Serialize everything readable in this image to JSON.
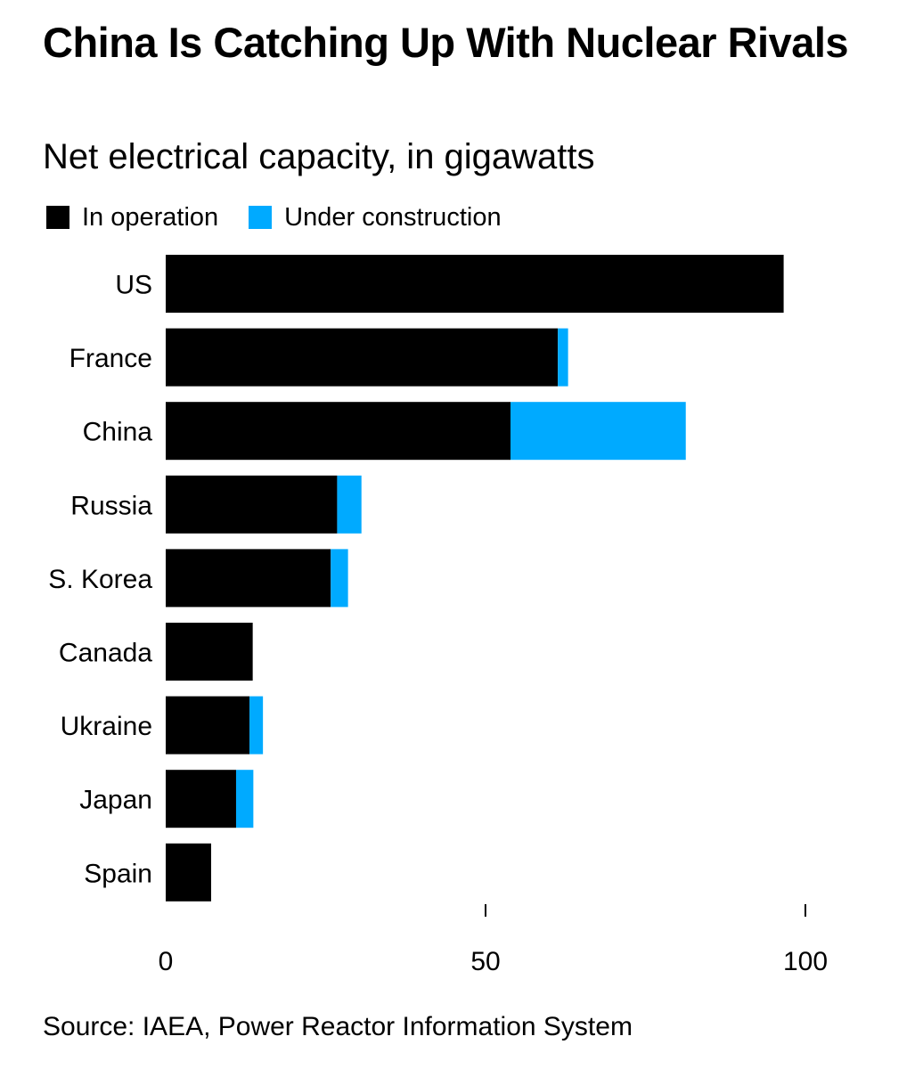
{
  "chart_data": {
    "type": "bar",
    "orientation": "horizontal",
    "stacked": true,
    "title": "China Is Catching Up With Nuclear Rivals",
    "subtitle": "Net electrical capacity, in gigawatts",
    "xlabel": "",
    "ylabel": "",
    "xlim": [
      0,
      100
    ],
    "x_ticks": [
      "0",
      "50",
      "100"
    ],
    "x_tick_values": [
      0,
      50,
      100
    ],
    "grid": false,
    "legend_position": "top-left",
    "categories": [
      "US",
      "France",
      "China",
      "Russia",
      "S. Korea",
      "Canada",
      "Ukraine",
      "Japan",
      "Spain"
    ],
    "series": [
      {
        "name": "In operation",
        "color": "#000000",
        "values": [
          96.6,
          61.3,
          53.9,
          26.8,
          25.8,
          13.6,
          13.1,
          11.0,
          7.1
        ]
      },
      {
        "name": "Under construction",
        "color": "#00aaff",
        "values": [
          0.0,
          1.6,
          27.4,
          3.8,
          2.7,
          0.0,
          2.1,
          2.7,
          0.0
        ]
      }
    ],
    "source": "Source: IAEA, Power Reactor Information System"
  }
}
